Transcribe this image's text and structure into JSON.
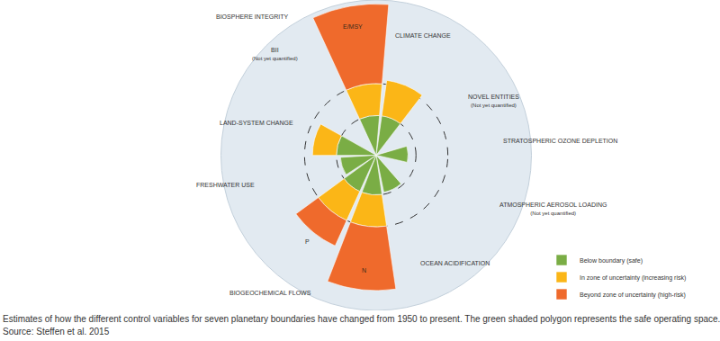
{
  "chart_data": {
    "type": "barpolar",
    "caption": "Estimates of how the different control variables for seven planetary boundaries have changed from 1950 to present. The green shaded polygon represents the safe operating space.",
    "source": "Source: Steffen et al. 2015",
    "categories": [
      "E/MSY",
      "CLIMATE CHANGE",
      "NOVEL ENTITIES",
      "STRATOSPHERIC OZONE DEPLETION",
      "ATMOSPHERIC AEROSOL LOADING",
      "OCEAN ACIDIFICATION",
      "N",
      "P",
      "FRESHWATER USE",
      "LAND-SYSTEM CHANGE",
      "BII"
    ],
    "notes": [
      null,
      null,
      "(Not yet quantified)",
      null,
      "(Not yet quantified)",
      null,
      null,
      null,
      null,
      null,
      "(Not yet quantified)"
    ],
    "groups": [
      "BIOSPHERE INTEGRITY",
      "BIOGEOCHEMICAL FLOWS"
    ],
    "series": [
      {
        "name": "Below boundary (safe)",
        "color": "#7aad45",
        "values": [
          1,
          1,
          null,
          0.8,
          null,
          0.95,
          1,
          1,
          0.9,
          1,
          null
        ]
      },
      {
        "name": "In zone of uncertainty (increasing risk)",
        "color": "#fbb617",
        "values": [
          0.8,
          0.9,
          null,
          null,
          null,
          null,
          0.8,
          0.8,
          null,
          0.6,
          null
        ]
      },
      {
        "name": "Beyond zone of uncertainty (high-risk)",
        "color": "#ef6a2c",
        "values": [
          2.0,
          null,
          null,
          null,
          null,
          null,
          1.6,
          0.7,
          null,
          null,
          null
        ]
      }
    ],
    "ylim": [
      0,
      3.9
    ],
    "yticks": [
      1,
      1.8
    ],
    "stacked": true,
    "grid": true,
    "tick_labels": false,
    "legend": "lower right"
  }
}
